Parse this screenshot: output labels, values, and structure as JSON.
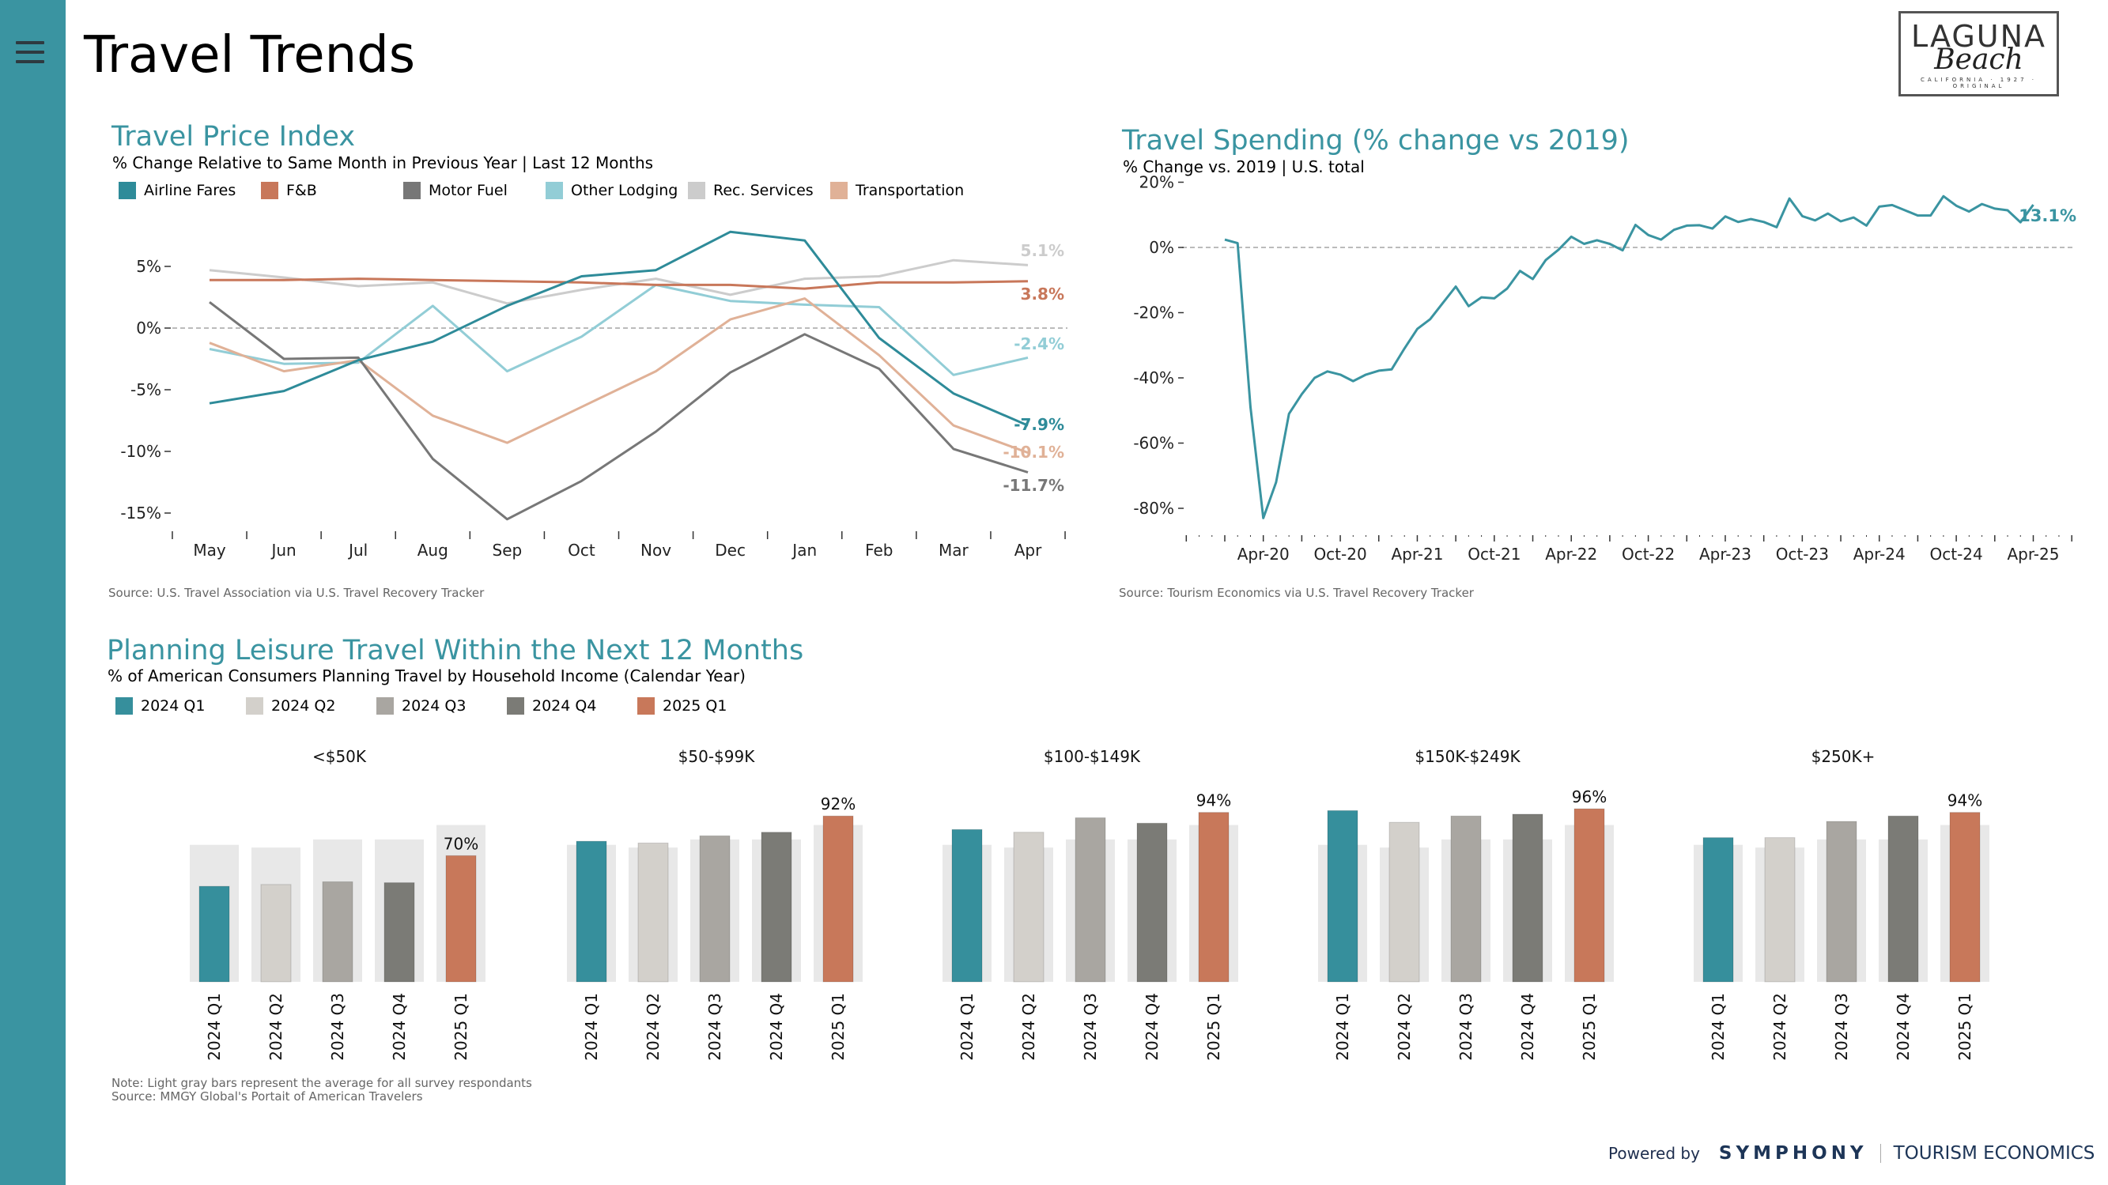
{
  "app": {
    "title": "Travel Trends",
    "menu_icon": "hamburger-menu-icon",
    "logo": {
      "line1": "LAGUNA",
      "line2": "Beach",
      "line3": "CALIFORNIA · 1927 · ORIGINAL"
    },
    "footer": {
      "powered_by": "Powered by",
      "brand": "SYMPHONY",
      "partner": "TOURISM ECONOMICS"
    }
  },
  "colors": {
    "accent": "#3A94A1",
    "airline": "#2E8B99",
    "fb": "#C8775A",
    "motor_fuel": "#777777",
    "other_lodging": "#92CDD6",
    "rec_services": "#CCCCCC",
    "transportation": "#E0B197",
    "q1_2024": "#368F9C",
    "q2_2024": "#D3D0CB",
    "q3_2024": "#A9A6A1",
    "q4_2024": "#7B7B76",
    "q1_2025": "#C8785A",
    "avg_bar": "#E8E8E8"
  },
  "price_index": {
    "title": "Travel Price Index",
    "subtitle": "% Change Relative to Same Month in Previous Year | Last 12 Months",
    "source": "Source: U.S. Travel Association via U.S. Travel Recovery Tracker"
  },
  "spending": {
    "title": "Travel Spending (% change vs 2019)",
    "subtitle": "% Change vs. 2019 | U.S. total",
    "source": "Source: Tourism Economics via U.S. Travel Recovery Tracker"
  },
  "planning": {
    "title": "Planning Leisure Travel Within the Next 12 Months",
    "subtitle": "% of American Consumers Planning Travel by Household Income (Calendar Year)",
    "note": "Note: Light gray bars represent the average for all survey respondants",
    "source": "Source: MMGY Global's Portait of American Travelers"
  },
  "chart_data": [
    {
      "type": "line",
      "title": "Travel Price Index",
      "subtitle": "% Change Relative to Same Month in Previous Year | Last 12 Months",
      "x": [
        "May",
        "Jun",
        "Jul",
        "Aug",
        "Sep",
        "Oct",
        "Nov",
        "Dec",
        "Jan",
        "Feb",
        "Mar",
        "Apr"
      ],
      "ylim": [
        -17,
        9
      ],
      "yticks": [
        5,
        0,
        -5,
        -10,
        -15
      ],
      "ytick_labels": [
        "5%",
        "0%",
        "-5%",
        "-10%",
        "-15%"
      ],
      "reference_line": 0,
      "legend_position": "top-left",
      "series": [
        {
          "name": "Airline Fares",
          "color_key": "airline",
          "values": [
            -6.1,
            -5.1,
            -2.6,
            -1.1,
            1.8,
            4.2,
            4.7,
            7.8,
            7.1,
            -0.8,
            -5.3,
            -7.9
          ],
          "end_label": "-7.9%"
        },
        {
          "name": "F&B",
          "color_key": "fb",
          "values": [
            3.9,
            3.9,
            4.0,
            3.9,
            3.8,
            3.7,
            3.5,
            3.5,
            3.2,
            3.7,
            3.7,
            3.8
          ],
          "end_label": "3.8%"
        },
        {
          "name": "Motor Fuel",
          "color_key": "motor_fuel",
          "values": [
            2.1,
            -2.5,
            -2.4,
            -10.6,
            -15.5,
            -12.4,
            -8.4,
            -3.6,
            -0.5,
            -3.3,
            -9.8,
            -11.7
          ],
          "end_label": "-11.7%"
        },
        {
          "name": "Other Lodging",
          "color_key": "other_lodging",
          "values": [
            -1.7,
            -2.9,
            -2.8,
            1.8,
            -3.5,
            -0.7,
            3.5,
            2.2,
            1.9,
            1.7,
            -3.8,
            -2.4
          ],
          "end_label": "-2.4%"
        },
        {
          "name": "Rec. Services",
          "color_key": "rec_services",
          "values": [
            4.7,
            4.1,
            3.4,
            3.7,
            2.0,
            3.1,
            4.0,
            2.7,
            4.0,
            4.2,
            5.5,
            5.1
          ],
          "end_label": "5.1%"
        },
        {
          "name": "Transportation",
          "color_key": "transportation",
          "values": [
            -1.2,
            -3.5,
            -2.6,
            -7.1,
            -9.3,
            -6.4,
            -3.5,
            0.7,
            2.4,
            -2.2,
            -7.9,
            -10.1
          ],
          "end_label": "-10.1%"
        }
      ]
    },
    {
      "type": "line",
      "title": "Travel Spending (% change vs 2019)",
      "subtitle": "% Change vs. 2019 | U.S. total",
      "x_start": "Jan-20",
      "x_end": "Apr-25",
      "xtick_labels": [
        "Apr-20",
        "Oct-20",
        "Apr-21",
        "Oct-21",
        "Apr-22",
        "Oct-22",
        "Apr-23",
        "Oct-23",
        "Apr-24",
        "Oct-24",
        "Apr-25"
      ],
      "ylim": [
        -88,
        22
      ],
      "yticks": [
        20,
        0,
        -20,
        -40,
        -60,
        -80
      ],
      "ytick_labels": [
        "20%",
        "0%",
        "-20%",
        "-40%",
        "-60%",
        "-80%"
      ],
      "reference_line": 0,
      "series": [
        {
          "name": "U.S. total",
          "color_key": "accent",
          "end_label": "13.1%",
          "values": [
            2.4,
            1.3,
            -49,
            -83,
            -72,
            -51,
            -45,
            -40,
            -38,
            -39,
            -41,
            -39,
            -37.8,
            -37.4,
            -31,
            -25,
            -22,
            -17,
            -12,
            -18,
            -15.3,
            -15.6,
            -12.6,
            -7.2,
            -9.7,
            -3.9,
            -0.7,
            3.3,
            1.1,
            2.2,
            1.1,
            -0.9,
            6.9,
            3.8,
            2.4,
            5.4,
            6.7,
            6.8,
            5.8,
            9.5,
            7.8,
            8.7,
            7.8,
            6.2,
            15.0,
            9.6,
            8.3,
            10.4,
            8.0,
            9.2,
            6.7,
            12.5,
            13.0,
            11.4,
            9.8,
            9.8,
            15.7,
            12.8,
            11.0,
            13.3,
            11.9,
            11.4,
            7.7,
            13.1
          ]
        }
      ]
    },
    {
      "type": "bar",
      "title": "Planning Leisure Travel Within the Next 12 Months",
      "subtitle": "% of American Consumers Planning Travel by Household Income (Calendar Year)",
      "groups": [
        "<$50K",
        "$50-$99K",
        "$100-$149K",
        "$150K-$249K",
        "$250K+"
      ],
      "categories": [
        "2024 Q1",
        "2024 Q2",
        "2024 Q3",
        "2024 Q4",
        "2025 Q1"
      ],
      "category_color_keys": [
        "q1_2024",
        "q2_2024",
        "q3_2024",
        "q4_2024",
        "q1_2025"
      ],
      "ylim": [
        0,
        100
      ],
      "average_all_respondents": [
        76,
        74.5,
        79,
        79,
        87
      ],
      "series": [
        {
          "name": "<$50K",
          "values": [
            53,
            54,
            55.5,
            55,
            70
          ],
          "label": "70%"
        },
        {
          "name": "$50-$99K",
          "values": [
            78,
            77,
            81,
            83,
            92
          ],
          "label": "92%"
        },
        {
          "name": "$100-$149K",
          "values": [
            84.5,
            83,
            91,
            88,
            94
          ],
          "label": "94%"
        },
        {
          "name": "$150K-$249K",
          "values": [
            95,
            88.5,
            92,
            93,
            96
          ],
          "label": "96%"
        },
        {
          "name": "$250K+",
          "values": [
            80,
            80,
            89,
            92,
            94
          ],
          "label": "94%"
        }
      ],
      "legend_position": "top-left"
    }
  ]
}
